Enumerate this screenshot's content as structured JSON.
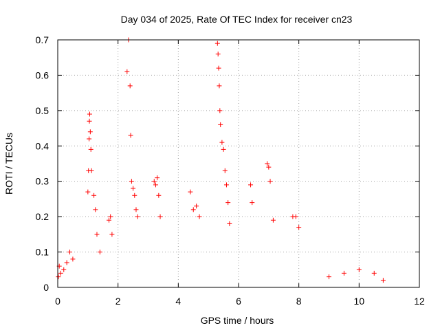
{
  "chart_data": {
    "type": "scatter",
    "title": "Day 034 of 2025, Rate Of TEC Index for receiver cn23",
    "xlabel": "GPS time / hours",
    "ylabel": "ROTI / TECUs",
    "xlim": [
      0,
      12
    ],
    "ylim": [
      0,
      0.7
    ],
    "xticks": [
      "0",
      "2",
      "4",
      "6",
      "8",
      "10",
      "12"
    ],
    "yticks": [
      "0",
      "0.1",
      "0.2",
      "0.3",
      "0.4",
      "0.5",
      "0.6",
      "0.7"
    ],
    "grid": true,
    "marker": "+",
    "series": [
      {
        "name": "ROTI",
        "color": "#ff0000",
        "points": [
          [
            0.02,
            0.03
          ],
          [
            0.05,
            0.06
          ],
          [
            0.1,
            0.04
          ],
          [
            0.2,
            0.05
          ],
          [
            0.3,
            0.07
          ],
          [
            0.4,
            0.1
          ],
          [
            0.5,
            0.08
          ],
          [
            1.0,
            0.27
          ],
          [
            1.02,
            0.33
          ],
          [
            1.04,
            0.42
          ],
          [
            1.05,
            0.47
          ],
          [
            1.06,
            0.49
          ],
          [
            1.08,
            0.44
          ],
          [
            1.1,
            0.39
          ],
          [
            1.12,
            0.33
          ],
          [
            1.2,
            0.26
          ],
          [
            1.25,
            0.22
          ],
          [
            1.3,
            0.15
          ],
          [
            1.4,
            0.1
          ],
          [
            1.7,
            0.19
          ],
          [
            1.75,
            0.2
          ],
          [
            1.8,
            0.15
          ],
          [
            2.3,
            0.61
          ],
          [
            2.35,
            0.7
          ],
          [
            2.4,
            0.57
          ],
          [
            2.42,
            0.43
          ],
          [
            2.45,
            0.3
          ],
          [
            2.5,
            0.28
          ],
          [
            2.55,
            0.26
          ],
          [
            2.6,
            0.22
          ],
          [
            2.65,
            0.2
          ],
          [
            3.2,
            0.3
          ],
          [
            3.25,
            0.29
          ],
          [
            3.3,
            0.31
          ],
          [
            3.35,
            0.26
          ],
          [
            3.4,
            0.2
          ],
          [
            4.4,
            0.27
          ],
          [
            4.5,
            0.22
          ],
          [
            4.6,
            0.23
          ],
          [
            4.7,
            0.2
          ],
          [
            5.3,
            0.69
          ],
          [
            5.32,
            0.66
          ],
          [
            5.34,
            0.62
          ],
          [
            5.36,
            0.57
          ],
          [
            5.38,
            0.5
          ],
          [
            5.4,
            0.46
          ],
          [
            5.45,
            0.41
          ],
          [
            5.5,
            0.39
          ],
          [
            5.55,
            0.33
          ],
          [
            5.6,
            0.29
          ],
          [
            5.65,
            0.24
          ],
          [
            5.7,
            0.18
          ],
          [
            6.4,
            0.29
          ],
          [
            6.45,
            0.24
          ],
          [
            6.95,
            0.35
          ],
          [
            7.0,
            0.34
          ],
          [
            7.05,
            0.3
          ],
          [
            7.15,
            0.19
          ],
          [
            7.8,
            0.2
          ],
          [
            7.9,
            0.2
          ],
          [
            8.0,
            0.17
          ],
          [
            9.0,
            0.03
          ],
          [
            9.5,
            0.04
          ],
          [
            10.0,
            0.05
          ],
          [
            10.5,
            0.04
          ],
          [
            10.8,
            0.02
          ]
        ]
      }
    ]
  }
}
